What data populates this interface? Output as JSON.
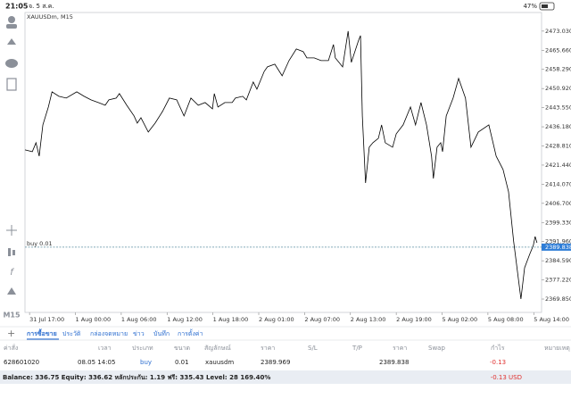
{
  "status_bar": {
    "time": "21:05",
    "date": "จ. 5 ส.ค.",
    "battery": "47%"
  },
  "toolbar": {
    "timeframe": "M15"
  },
  "chart_data": {
    "type": "line",
    "title": "XAUUSDm, M15",
    "color": "#000000",
    "x": [
      -0.1,
      0.06,
      0.14,
      0.21,
      0.29,
      0.41,
      0.49,
      0.64,
      0.8,
      1.03,
      1.19,
      1.34,
      1.5,
      1.65,
      1.73,
      1.89,
      1.96,
      2.12,
      2.28,
      2.35,
      2.43,
      2.59,
      2.74,
      2.9,
      3.05,
      3.21,
      3.37,
      3.52,
      3.68,
      3.83,
      3.99,
      4.03,
      4.11,
      4.26,
      4.42,
      4.49,
      4.65,
      4.73,
      4.88,
      4.96,
      5.12,
      5.19,
      5.35,
      5.51,
      5.66,
      5.82,
      5.97,
      6.05,
      6.21,
      6.36,
      6.52,
      6.63,
      6.67,
      6.83,
      6.95,
      7.02,
      7.18,
      7.22,
      7.26,
      7.33,
      7.41,
      7.49,
      7.61,
      7.68,
      7.76,
      7.92,
      8.0,
      8.15,
      8.31,
      8.42,
      8.54,
      8.66,
      8.77,
      8.81,
      8.89,
      8.97,
      9.01,
      9.09,
      9.24,
      9.36,
      9.51,
      9.63,
      9.79,
      10.02,
      10.18,
      10.33,
      10.45,
      10.56,
      10.72,
      10.8,
      10.91,
      10.99,
      11.03,
      11.07
    ],
    "values": [
      2427.29,
      2426.6,
      2430.04,
      2424.88,
      2436.92,
      2443.8,
      2449.64,
      2447.93,
      2447.24,
      2449.64,
      2447.93,
      2446.55,
      2445.52,
      2444.49,
      2446.55,
      2447.24,
      2448.96,
      2444.49,
      2440.36,
      2437.61,
      2439.67,
      2434.17,
      2437.61,
      2442.08,
      2447.24,
      2446.55,
      2440.36,
      2447.24,
      2444.49,
      2445.52,
      2443.11,
      2448.96,
      2443.8,
      2445.52,
      2445.52,
      2447.24,
      2447.93,
      2446.55,
      2453.43,
      2450.68,
      2457.55,
      2459.27,
      2460.31,
      2455.83,
      2461.68,
      2466.15,
      2465.12,
      2462.71,
      2462.71,
      2461.68,
      2461.68,
      2467.87,
      2462.71,
      2459.27,
      2473.03,
      2460.99,
      2469.59,
      2471.31,
      2440.36,
      2414.57,
      2428.32,
      2430.04,
      2431.76,
      2436.92,
      2430.04,
      2428.32,
      2433.48,
      2436.92,
      2443.8,
      2436.92,
      2445.52,
      2436.92,
      2424.88,
      2416.29,
      2428.32,
      2430.04,
      2426.6,
      2440.36,
      2447.24,
      2454.8,
      2447.24,
      2428.32,
      2434.17,
      2436.92,
      2424.88,
      2419.73,
      2411.13,
      2392.21,
      2369.86,
      2381.9,
      2387.05,
      2390.49,
      2393.93,
      2391.53
    ],
    "xlim": [
      -0.1,
      11.17
    ],
    "ylim": [
      2364.7,
      2480.2
    ],
    "xticks": [
      {
        "value": 0,
        "label": "31 Jul 17:00"
      },
      {
        "value": 1,
        "label": "1 Aug 00:00"
      },
      {
        "value": 2,
        "label": "1 Aug 06:00"
      },
      {
        "value": 3,
        "label": "1 Aug 12:00"
      },
      {
        "value": 4,
        "label": "1 Aug 18:00"
      },
      {
        "value": 5,
        "label": "2 Aug 01:00"
      },
      {
        "value": 6,
        "label": "2 Aug 07:00"
      },
      {
        "value": 7,
        "label": "2 Aug 13:00"
      },
      {
        "value": 8,
        "label": "2 Aug 19:00"
      },
      {
        "value": 9,
        "label": "5 Aug 02:00"
      },
      {
        "value": 10,
        "label": "5 Aug 08:00"
      },
      {
        "value": 11,
        "label": "5 Aug 14:00"
      }
    ],
    "yticks": [
      {
        "value": 2473.03,
        "label": "2473.030"
      },
      {
        "value": 2465.66,
        "label": "2465.660"
      },
      {
        "value": 2458.29,
        "label": "2458.290"
      },
      {
        "value": 2450.92,
        "label": "2450.920"
      },
      {
        "value": 2443.55,
        "label": "2443.550"
      },
      {
        "value": 2436.18,
        "label": "2436.180"
      },
      {
        "value": 2428.81,
        "label": "2428.810"
      },
      {
        "value": 2421.44,
        "label": "2421.440"
      },
      {
        "value": 2414.07,
        "label": "2414.070"
      },
      {
        "value": 2406.7,
        "label": "2406.700"
      },
      {
        "value": 2399.33,
        "label": "2399.330"
      },
      {
        "value": 2391.96,
        "label": "2391.960"
      },
      {
        "value": 2384.59,
        "label": "2384.590"
      },
      {
        "value": 2377.22,
        "label": "2377.220"
      },
      {
        "value": 2369.85,
        "label": "2369.850"
      }
    ],
    "order_line": {
      "label": "buy 0.01",
      "value": 2389.838,
      "color": "#2e7dd7"
    }
  },
  "tabs": [
    "การซื้อขาย",
    "ประวัติ",
    "กล่องจดหมาย",
    "ข่าว",
    "บันทึก",
    "การตั้งค่า"
  ],
  "table": {
    "headers": [
      "ค่าสั่ง",
      "เวลา",
      "ประเภท",
      "ขนาด",
      "สัญลักษณ์",
      "ราคา",
      "S/L",
      "T/P",
      "ราคา",
      "Swap",
      "กำไร",
      "หมายเหตุ"
    ],
    "row": {
      "order": "628601020",
      "time": "08.05 14:05",
      "type": "buy",
      "volume": "0.01",
      "symbol": "xauusdm",
      "open_price": "2389.969",
      "current_price": "2389.838",
      "profit": "-0.13"
    }
  },
  "summary": {
    "text": "Balance: 336.75 Equity: 336.62 หลักประกัน: 1.19 ฟรี: 335.43 Level: 28 169.40%",
    "profit": "-0.13 USD"
  }
}
